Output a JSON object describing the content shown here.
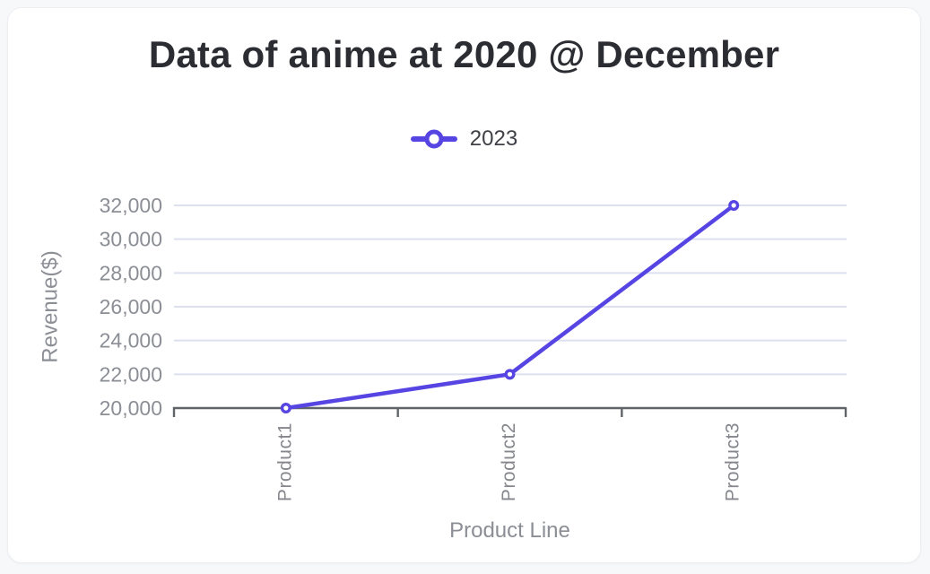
{
  "window": {
    "page_background": "#f7f8fa",
    "card_background": "#ffffff",
    "card_border": "#eceef2"
  },
  "chart_data": {
    "type": "line",
    "title": "Data of anime at 2020 @ December",
    "categories": [
      "Product1",
      "Product2",
      "Product3"
    ],
    "series": [
      {
        "name": "2023",
        "values": [
          20000,
          22000,
          32000
        ],
        "color": "#5645e2",
        "marker": "hollow-circle"
      }
    ],
    "xlabel": "Product Line",
    "ylabel": "Revenue($)",
    "ylim": [
      20000,
      32000
    ],
    "ytick_step": 2000,
    "ytick_labels": [
      "20,000",
      "22,000",
      "24,000",
      "26,000",
      "28,000",
      "30,000",
      "32,000"
    ],
    "grid": true,
    "legend_position": "top-center",
    "colors": {
      "grid": "#dde1ef",
      "axis": "#606469",
      "tick_label": "#8b8e95",
      "axis_title": "#8b8e95",
      "category_label": "#85878d",
      "title": "#2b2d33",
      "legend_text": "#3f4147",
      "marker_fill": "#ffffff"
    }
  }
}
